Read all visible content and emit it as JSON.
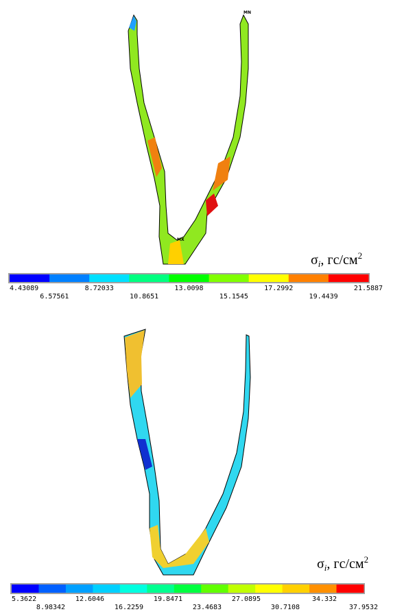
{
  "panels": [
    {
      "markers": [
        "MN",
        "MX"
      ],
      "label": {
        "symbol": "σ",
        "subscript": "i",
        "unit": ", гс/см",
        "exponent": "2"
      },
      "legend": {
        "colors": [
          "#0000ff",
          "#0080ff",
          "#00e0ff",
          "#00ff80",
          "#00ff00",
          "#80ff00",
          "#ffff00",
          "#ff8000",
          "#ff0000"
        ],
        "ticks": [
          "4.43089",
          "6.57561",
          "8.72033",
          "10.8651",
          "13.0098",
          "15.1545",
          "17.2992",
          "19.4439",
          "21.5887"
        ]
      }
    },
    {
      "markers": [],
      "label": {
        "symbol": "σ",
        "subscript": "i",
        "unit": ", гс/см",
        "exponent": "2"
      },
      "legend": {
        "colors": [
          "#0000ff",
          "#0060ff",
          "#00a0ff",
          "#00d0ff",
          "#00ffe0",
          "#00ff90",
          "#00ff40",
          "#60ff00",
          "#c0ff00",
          "#ffff00",
          "#ffd000",
          "#ff9000",
          "#ff0000"
        ],
        "ticks": [
          "5.3622",
          "8.98342",
          "12.6046",
          "16.2259",
          "19.8471",
          "23.4683",
          "27.0895",
          "30.7108",
          "34.332",
          "37.9532"
        ]
      }
    }
  ]
}
